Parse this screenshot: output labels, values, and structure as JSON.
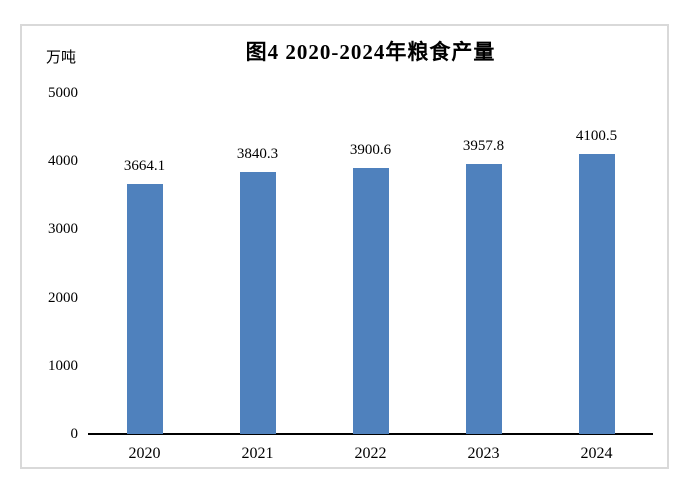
{
  "chart_data": {
    "type": "bar",
    "title": "图4 2020-2024年粮食产量",
    "unit_label": "万吨",
    "categories": [
      "2020",
      "2021",
      "2022",
      "2023",
      "2024"
    ],
    "values": [
      3664.1,
      3840.3,
      3900.6,
      3957.8,
      4100.5
    ],
    "value_labels": [
      "3664.1",
      "3840.3",
      "3900.6",
      "3957.8",
      "4100.5"
    ],
    "ytick_labels": [
      "0",
      "1000",
      "2000",
      "3000",
      "4000",
      "5000"
    ],
    "yticks": [
      0,
      1000,
      2000,
      3000,
      4000,
      5000
    ],
    "ylim": [
      0,
      5000
    ],
    "xlabel": "",
    "ylabel": "万吨",
    "grid": "off",
    "legend": "none",
    "data_labels": "above-bars",
    "colors": {
      "bar": "#4F81BD",
      "axis": "#000000",
      "text": "#000000",
      "frame_border": "#D9D9D9",
      "background": "#FFFFFF"
    }
  }
}
